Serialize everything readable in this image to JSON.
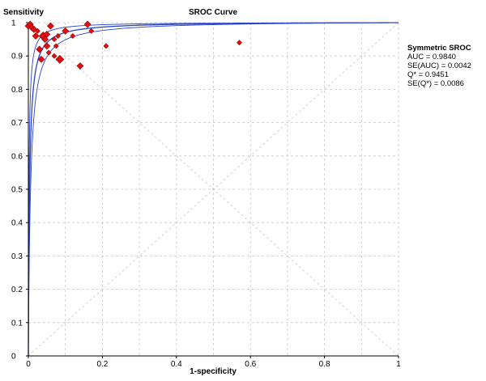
{
  "chart_data": {
    "type": "scatter",
    "title": "SROC Curve",
    "xlabel": "1-specificity",
    "ylabel": "Sensitivity",
    "xlim": [
      0,
      1
    ],
    "ylim": [
      0,
      1
    ],
    "x_ticks": [
      "0",
      "0.2",
      "0.4",
      "0.6",
      "0.8",
      "1"
    ],
    "y_ticks": [
      "0",
      "0.1",
      "0.2",
      "0.3",
      "0.4",
      "0.5",
      "0.6",
      "0.7",
      "0.8",
      "0.9",
      "1"
    ],
    "grid": true,
    "diagonal": true,
    "colors": {
      "curve": "#2a44c8",
      "point": "#e01010",
      "grid": "#c8c8c8"
    },
    "curves": [
      {
        "role": "sroc",
        "Q": 0.9451
      },
      {
        "role": "upper",
        "Q": 0.962
      },
      {
        "role": "lower",
        "Q": 0.928
      }
    ],
    "points": [
      {
        "x": 0.0,
        "y": 0.99,
        "size": 4
      },
      {
        "x": 0.005,
        "y": 0.995,
        "size": 4
      },
      {
        "x": 0.01,
        "y": 0.985,
        "size": 4
      },
      {
        "x": 0.015,
        "y": 0.98,
        "size": 4
      },
      {
        "x": 0.02,
        "y": 0.96,
        "size": 4
      },
      {
        "x": 0.025,
        "y": 0.975,
        "size": 3
      },
      {
        "x": 0.03,
        "y": 0.92,
        "size": 4
      },
      {
        "x": 0.035,
        "y": 0.89,
        "size": 4
      },
      {
        "x": 0.04,
        "y": 0.96,
        "size": 5
      },
      {
        "x": 0.045,
        "y": 0.95,
        "size": 4
      },
      {
        "x": 0.05,
        "y": 0.93,
        "size": 4
      },
      {
        "x": 0.05,
        "y": 0.965,
        "size": 4
      },
      {
        "x": 0.055,
        "y": 0.91,
        "size": 3
      },
      {
        "x": 0.06,
        "y": 0.99,
        "size": 4
      },
      {
        "x": 0.07,
        "y": 0.9,
        "size": 3
      },
      {
        "x": 0.07,
        "y": 0.95,
        "size": 3
      },
      {
        "x": 0.075,
        "y": 0.93,
        "size": 3
      },
      {
        "x": 0.08,
        "y": 0.96,
        "size": 3
      },
      {
        "x": 0.085,
        "y": 0.89,
        "size": 5
      },
      {
        "x": 0.1,
        "y": 0.975,
        "size": 4
      },
      {
        "x": 0.12,
        "y": 0.96,
        "size": 3
      },
      {
        "x": 0.14,
        "y": 0.87,
        "size": 4
      },
      {
        "x": 0.16,
        "y": 0.995,
        "size": 4
      },
      {
        "x": 0.17,
        "y": 0.975,
        "size": 3
      },
      {
        "x": 0.21,
        "y": 0.93,
        "size": 3
      },
      {
        "x": 0.57,
        "y": 0.94,
        "size": 3
      }
    ]
  },
  "stats": {
    "heading": "Symmetric SROC",
    "auc": "AUC = 0.9840",
    "se_auc": "SE(AUC) = 0.0042",
    "q": "Q* = 0.9451",
    "se_q": "SE(Q*) = 0.0086"
  }
}
